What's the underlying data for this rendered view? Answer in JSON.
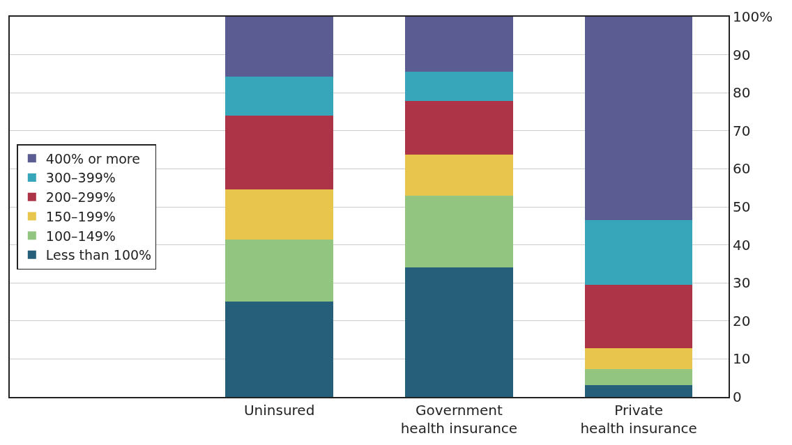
{
  "chart_data": {
    "type": "bar",
    "stacked": true,
    "categories": [
      null,
      "Uninsured",
      "Government\nhealth insurance",
      "Private\nhealth insurance"
    ],
    "series": [
      {
        "name": "Less than 100%",
        "color": "#265f7a",
        "values": [
          null,
          25.1,
          34.1,
          3.1
        ]
      },
      {
        "name": "100–149%",
        "color": "#92c57f",
        "values": [
          null,
          16.3,
          18.9,
          4.3
        ]
      },
      {
        "name": "150–199%",
        "color": "#e8c64e",
        "values": [
          null,
          13.1,
          10.7,
          5.5
        ]
      },
      {
        "name": "200–299%",
        "color": "#ad3446",
        "values": [
          null,
          19.5,
          14.1,
          16.6
        ]
      },
      {
        "name": "300–399%",
        "color": "#37a5ba",
        "values": [
          null,
          10.3,
          7.8,
          17.0
        ]
      },
      {
        "name": "400% or more",
        "color": "#5a5c92",
        "values": [
          null,
          15.7,
          14.4,
          53.5
        ]
      }
    ],
    "ylim": [
      0,
      100
    ],
    "yticks": [
      0,
      10,
      20,
      30,
      40,
      50,
      60,
      70,
      80,
      90,
      {
        "value": 100,
        "label": "100%"
      }
    ],
    "grid": "y",
    "legend": "left"
  }
}
